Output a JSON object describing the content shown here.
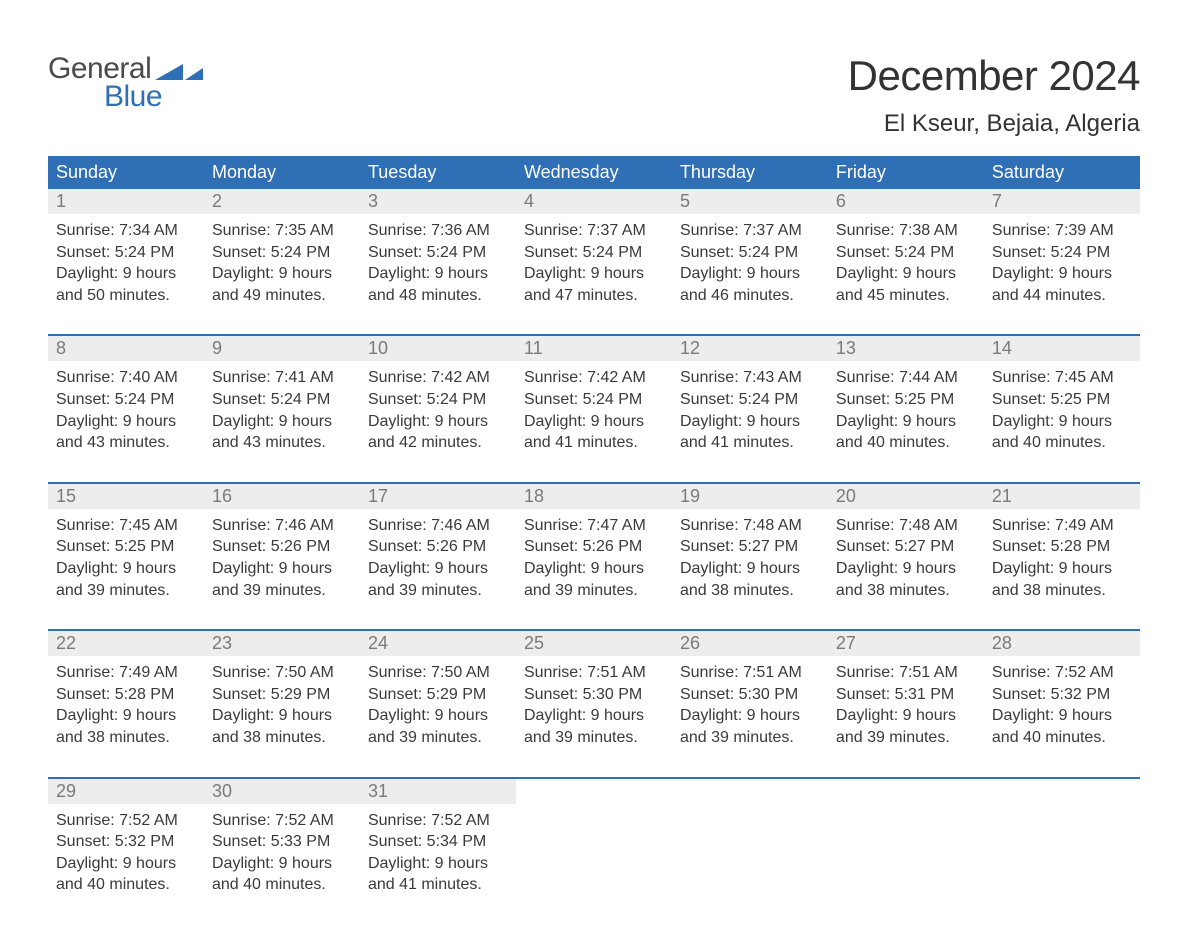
{
  "logo": {
    "text1": "General",
    "text2": "Blue"
  },
  "title": "December 2024",
  "location": "El Kseur, Bejaia, Algeria",
  "colors": {
    "header_bg": "#2e6fb5",
    "header_text": "#ffffff",
    "daynum_bg": "#ededed",
    "daynum_text": "#7a7a7a",
    "body_text": "#3a3a3a",
    "rule": "#2e6fb5",
    "logo_gray": "#4a4a4a",
    "logo_blue": "#2e6fb5",
    "page_bg": "#ffffff"
  },
  "typography": {
    "title_fontsize": 42,
    "location_fontsize": 24,
    "dayhead_fontsize": 18,
    "daynum_fontsize": 18,
    "body_fontsize": 16
  },
  "day_names": [
    "Sunday",
    "Monday",
    "Tuesday",
    "Wednesday",
    "Thursday",
    "Friday",
    "Saturday"
  ],
  "weeks": [
    [
      {
        "n": "1",
        "sunrise": "Sunrise: 7:34 AM",
        "sunset": "Sunset: 5:24 PM",
        "d1": "Daylight: 9 hours",
        "d2": "and 50 minutes."
      },
      {
        "n": "2",
        "sunrise": "Sunrise: 7:35 AM",
        "sunset": "Sunset: 5:24 PM",
        "d1": "Daylight: 9 hours",
        "d2": "and 49 minutes."
      },
      {
        "n": "3",
        "sunrise": "Sunrise: 7:36 AM",
        "sunset": "Sunset: 5:24 PM",
        "d1": "Daylight: 9 hours",
        "d2": "and 48 minutes."
      },
      {
        "n": "4",
        "sunrise": "Sunrise: 7:37 AM",
        "sunset": "Sunset: 5:24 PM",
        "d1": "Daylight: 9 hours",
        "d2": "and 47 minutes."
      },
      {
        "n": "5",
        "sunrise": "Sunrise: 7:37 AM",
        "sunset": "Sunset: 5:24 PM",
        "d1": "Daylight: 9 hours",
        "d2": "and 46 minutes."
      },
      {
        "n": "6",
        "sunrise": "Sunrise: 7:38 AM",
        "sunset": "Sunset: 5:24 PM",
        "d1": "Daylight: 9 hours",
        "d2": "and 45 minutes."
      },
      {
        "n": "7",
        "sunrise": "Sunrise: 7:39 AM",
        "sunset": "Sunset: 5:24 PM",
        "d1": "Daylight: 9 hours",
        "d2": "and 44 minutes."
      }
    ],
    [
      {
        "n": "8",
        "sunrise": "Sunrise: 7:40 AM",
        "sunset": "Sunset: 5:24 PM",
        "d1": "Daylight: 9 hours",
        "d2": "and 43 minutes."
      },
      {
        "n": "9",
        "sunrise": "Sunrise: 7:41 AM",
        "sunset": "Sunset: 5:24 PM",
        "d1": "Daylight: 9 hours",
        "d2": "and 43 minutes."
      },
      {
        "n": "10",
        "sunrise": "Sunrise: 7:42 AM",
        "sunset": "Sunset: 5:24 PM",
        "d1": "Daylight: 9 hours",
        "d2": "and 42 minutes."
      },
      {
        "n": "11",
        "sunrise": "Sunrise: 7:42 AM",
        "sunset": "Sunset: 5:24 PM",
        "d1": "Daylight: 9 hours",
        "d2": "and 41 minutes."
      },
      {
        "n": "12",
        "sunrise": "Sunrise: 7:43 AM",
        "sunset": "Sunset: 5:24 PM",
        "d1": "Daylight: 9 hours",
        "d2": "and 41 minutes."
      },
      {
        "n": "13",
        "sunrise": "Sunrise: 7:44 AM",
        "sunset": "Sunset: 5:25 PM",
        "d1": "Daylight: 9 hours",
        "d2": "and 40 minutes."
      },
      {
        "n": "14",
        "sunrise": "Sunrise: 7:45 AM",
        "sunset": "Sunset: 5:25 PM",
        "d1": "Daylight: 9 hours",
        "d2": "and 40 minutes."
      }
    ],
    [
      {
        "n": "15",
        "sunrise": "Sunrise: 7:45 AM",
        "sunset": "Sunset: 5:25 PM",
        "d1": "Daylight: 9 hours",
        "d2": "and 39 minutes."
      },
      {
        "n": "16",
        "sunrise": "Sunrise: 7:46 AM",
        "sunset": "Sunset: 5:26 PM",
        "d1": "Daylight: 9 hours",
        "d2": "and 39 minutes."
      },
      {
        "n": "17",
        "sunrise": "Sunrise: 7:46 AM",
        "sunset": "Sunset: 5:26 PM",
        "d1": "Daylight: 9 hours",
        "d2": "and 39 minutes."
      },
      {
        "n": "18",
        "sunrise": "Sunrise: 7:47 AM",
        "sunset": "Sunset: 5:26 PM",
        "d1": "Daylight: 9 hours",
        "d2": "and 39 minutes."
      },
      {
        "n": "19",
        "sunrise": "Sunrise: 7:48 AM",
        "sunset": "Sunset: 5:27 PM",
        "d1": "Daylight: 9 hours",
        "d2": "and 38 minutes."
      },
      {
        "n": "20",
        "sunrise": "Sunrise: 7:48 AM",
        "sunset": "Sunset: 5:27 PM",
        "d1": "Daylight: 9 hours",
        "d2": "and 38 minutes."
      },
      {
        "n": "21",
        "sunrise": "Sunrise: 7:49 AM",
        "sunset": "Sunset: 5:28 PM",
        "d1": "Daylight: 9 hours",
        "d2": "and 38 minutes."
      }
    ],
    [
      {
        "n": "22",
        "sunrise": "Sunrise: 7:49 AM",
        "sunset": "Sunset: 5:28 PM",
        "d1": "Daylight: 9 hours",
        "d2": "and 38 minutes."
      },
      {
        "n": "23",
        "sunrise": "Sunrise: 7:50 AM",
        "sunset": "Sunset: 5:29 PM",
        "d1": "Daylight: 9 hours",
        "d2": "and 38 minutes."
      },
      {
        "n": "24",
        "sunrise": "Sunrise: 7:50 AM",
        "sunset": "Sunset: 5:29 PM",
        "d1": "Daylight: 9 hours",
        "d2": "and 39 minutes."
      },
      {
        "n": "25",
        "sunrise": "Sunrise: 7:51 AM",
        "sunset": "Sunset: 5:30 PM",
        "d1": "Daylight: 9 hours",
        "d2": "and 39 minutes."
      },
      {
        "n": "26",
        "sunrise": "Sunrise: 7:51 AM",
        "sunset": "Sunset: 5:30 PM",
        "d1": "Daylight: 9 hours",
        "d2": "and 39 minutes."
      },
      {
        "n": "27",
        "sunrise": "Sunrise: 7:51 AM",
        "sunset": "Sunset: 5:31 PM",
        "d1": "Daylight: 9 hours",
        "d2": "and 39 minutes."
      },
      {
        "n": "28",
        "sunrise": "Sunrise: 7:52 AM",
        "sunset": "Sunset: 5:32 PM",
        "d1": "Daylight: 9 hours",
        "d2": "and 40 minutes."
      }
    ],
    [
      {
        "n": "29",
        "sunrise": "Sunrise: 7:52 AM",
        "sunset": "Sunset: 5:32 PM",
        "d1": "Daylight: 9 hours",
        "d2": "and 40 minutes."
      },
      {
        "n": "30",
        "sunrise": "Sunrise: 7:52 AM",
        "sunset": "Sunset: 5:33 PM",
        "d1": "Daylight: 9 hours",
        "d2": "and 40 minutes."
      },
      {
        "n": "31",
        "sunrise": "Sunrise: 7:52 AM",
        "sunset": "Sunset: 5:34 PM",
        "d1": "Daylight: 9 hours",
        "d2": "and 41 minutes."
      },
      null,
      null,
      null,
      null
    ]
  ]
}
